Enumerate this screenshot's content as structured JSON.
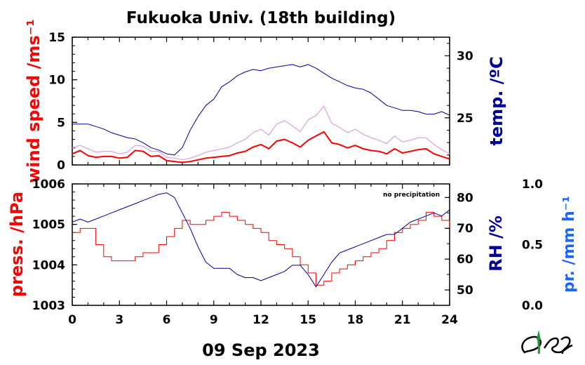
{
  "title": "Fukuoka Univ. (18th building)",
  "date_label": "09 Sep 2023",
  "colors": {
    "wind": "#ff0000",
    "wind_gust": "#d9a0e0",
    "temp": "#000099",
    "press": "#ff0000",
    "rh": "#000099",
    "precip": "#1a66ff",
    "frame": "#000000"
  },
  "chart_data": [
    {
      "type": "line",
      "panel": "top",
      "x_label": "",
      "x_ticks": [
        "0",
        "3",
        "6",
        "9",
        "12",
        "15",
        "18",
        "21",
        "24"
      ],
      "xlim": [
        0,
        24
      ],
      "left_axis": {
        "label": "wind speed /ms⁻¹",
        "ticks": [
          "0",
          "5",
          "10",
          "15"
        ],
        "lim": [
          0,
          15
        ]
      },
      "right_axis": {
        "label": "temp. /ºC",
        "ticks": [
          "25",
          "30"
        ],
        "lim": [
          21.2,
          31.5
        ]
      },
      "series": [
        {
          "name": "wind speed",
          "axis": "left",
          "x": [
            0,
            0.5,
            1,
            1.5,
            2,
            2.5,
            3,
            3.5,
            4,
            4.5,
            5,
            5.5,
            6,
            6.5,
            7,
            7.5,
            8,
            8.5,
            9,
            9.5,
            10,
            10.5,
            11,
            11.5,
            12,
            12.5,
            13,
            13.5,
            14,
            14.5,
            15,
            15.5,
            16,
            16.5,
            17,
            17.5,
            18,
            18.5,
            19,
            19.5,
            20,
            20.5,
            21,
            21.5,
            22,
            22.5,
            23,
            23.5,
            24
          ],
          "values": [
            1.3,
            1.7,
            1.1,
            0.9,
            1.0,
            1.0,
            0.8,
            0.9,
            1.7,
            1.6,
            1.0,
            1.1,
            0.5,
            0.4,
            0.3,
            0.4,
            0.6,
            0.8,
            0.9,
            1.0,
            1.1,
            1.4,
            1.6,
            2.1,
            2.4,
            1.9,
            2.8,
            3.0,
            2.6,
            2.1,
            2.9,
            3.4,
            3.9,
            2.6,
            2.4,
            2.0,
            2.3,
            1.9,
            1.7,
            1.6,
            1.3,
            1.9,
            1.4,
            1.6,
            1.8,
            1.9,
            1.3,
            1.0,
            0.7
          ]
        },
        {
          "name": "wind gust",
          "axis": "left",
          "x": [
            0,
            0.5,
            1,
            1.5,
            2,
            2.5,
            3,
            3.5,
            4,
            4.5,
            5,
            5.5,
            6,
            6.5,
            7,
            7.5,
            8,
            8.5,
            9,
            9.5,
            10,
            10.5,
            11,
            11.5,
            12,
            12.5,
            13,
            13.5,
            14,
            14.5,
            15,
            15.5,
            16,
            16.5,
            17,
            17.5,
            18,
            18.5,
            19,
            19.5,
            20,
            20.5,
            21,
            21.5,
            22,
            22.5,
            23,
            23.5,
            24
          ],
          "values": [
            2.0,
            2.3,
            1.9,
            1.5,
            1.6,
            1.6,
            1.3,
            1.5,
            2.3,
            2.2,
            1.6,
            1.6,
            0.9,
            0.8,
            0.6,
            0.8,
            1.1,
            1.5,
            1.7,
            1.9,
            2.1,
            2.6,
            3.0,
            3.8,
            4.2,
            3.5,
            4.8,
            5.2,
            4.6,
            3.9,
            5.3,
            5.8,
            6.9,
            4.9,
            4.4,
            3.8,
            4.2,
            3.6,
            3.2,
            2.9,
            2.5,
            3.4,
            2.7,
            2.9,
            3.2,
            3.2,
            2.4,
            1.8,
            1.3
          ]
        },
        {
          "name": "temperature",
          "axis": "right",
          "x": [
            0,
            0.5,
            1,
            1.5,
            2,
            2.5,
            3,
            3.5,
            4,
            4.5,
            5,
            5.5,
            6,
            6.5,
            7,
            7.5,
            8,
            8.5,
            9,
            9.5,
            10,
            10.5,
            11,
            11.5,
            12,
            12.5,
            13,
            13.5,
            14,
            14.5,
            15,
            15.5,
            16,
            16.5,
            17,
            17.5,
            18,
            18.5,
            19,
            19.5,
            20,
            20.5,
            21,
            21.5,
            22,
            22.5,
            23,
            23.5,
            24
          ],
          "values": [
            24.5,
            24.5,
            24.5,
            24.3,
            24.1,
            23.8,
            23.6,
            23.4,
            23.3,
            23.0,
            22.6,
            22.4,
            22.1,
            22.0,
            22.6,
            24.0,
            25.1,
            26.0,
            26.5,
            27.5,
            27.9,
            28.4,
            28.7,
            28.9,
            28.8,
            29.0,
            29.1,
            29.2,
            29.3,
            29.1,
            29.3,
            29.0,
            28.6,
            28.2,
            27.9,
            27.6,
            27.4,
            27.3,
            27.0,
            26.5,
            26.0,
            25.8,
            25.6,
            25.6,
            25.5,
            25.3,
            25.3,
            25.5,
            25.2
          ]
        }
      ]
    },
    {
      "type": "line",
      "panel": "bottom",
      "x_label": "",
      "x_ticks": [
        "0",
        "3",
        "6",
        "9",
        "12",
        "15",
        "18",
        "21",
        "24"
      ],
      "xlim": [
        0,
        24
      ],
      "annotation": "no precipitation",
      "left_axis": {
        "label": "press. /hPa",
        "ticks": [
          "1003",
          "1004",
          "1005",
          "1006"
        ],
        "lim": [
          1003,
          1006
        ]
      },
      "right_axis": {
        "label": "RH /%",
        "ticks": [
          "50",
          "60",
          "70",
          "80"
        ],
        "lim": [
          45,
          84.4
        ]
      },
      "far_right_axis": {
        "label": "pr. /mm h⁻¹",
        "ticks": [
          "0.0",
          "0.5",
          "1.0"
        ],
        "lim": [
          0,
          1
        ]
      },
      "series": [
        {
          "name": "pressure",
          "axis": "left",
          "x": [
            0,
            0.5,
            1,
            1.5,
            2,
            2.5,
            3,
            3.5,
            4,
            4.5,
            5,
            5.5,
            6,
            6.5,
            7,
            7.5,
            8,
            8.5,
            9,
            9.5,
            10,
            10.5,
            11,
            11.5,
            12,
            12.5,
            13,
            13.5,
            14,
            14.5,
            15,
            15.5,
            16,
            16.5,
            17,
            17.5,
            18,
            18.5,
            19,
            19.5,
            20,
            20.5,
            21,
            21.5,
            22,
            22.5,
            23,
            23.5,
            24
          ],
          "values": [
            1004.8,
            1004.9,
            1004.9,
            1004.5,
            1004.2,
            1004.1,
            1004.1,
            1004.1,
            1004.2,
            1004.3,
            1004.3,
            1004.5,
            1004.7,
            1004.9,
            1005.1,
            1005.0,
            1005.0,
            1005.1,
            1005.2,
            1005.3,
            1005.2,
            1005.1,
            1005.0,
            1004.9,
            1004.8,
            1004.6,
            1004.5,
            1004.4,
            1004.2,
            1004.0,
            1003.8,
            1003.5,
            1003.6,
            1003.8,
            1003.9,
            1004.0,
            1004.1,
            1004.2,
            1004.3,
            1004.4,
            1004.6,
            1004.8,
            1004.9,
            1005.0,
            1005.1,
            1005.3,
            1005.2,
            1005.1,
            1004.9
          ]
        },
        {
          "name": "relative humidity",
          "axis": "right",
          "x": [
            0,
            0.5,
            1,
            1.5,
            2,
            2.5,
            3,
            3.5,
            4,
            4.5,
            5,
            5.5,
            6,
            6.5,
            7,
            7.5,
            8,
            8.5,
            9,
            9.5,
            10,
            10.5,
            11,
            11.5,
            12,
            12.5,
            13,
            13.5,
            14,
            14.5,
            15,
            15.5,
            16,
            16.5,
            17,
            17.5,
            18,
            18.5,
            19,
            19.5,
            20,
            20.5,
            21,
            21.5,
            22,
            22.5,
            23,
            23.5,
            24
          ],
          "values": [
            72.0,
            73.0,
            72.0,
            73.0,
            74.0,
            75.0,
            76.0,
            77.0,
            78.0,
            79.0,
            80.0,
            81.0,
            81.5,
            80.0,
            75.0,
            70.0,
            64.0,
            59.0,
            57.0,
            57.0,
            57.0,
            55.0,
            54.0,
            54.0,
            53.0,
            54.0,
            55.0,
            56.0,
            58.0,
            58.0,
            55.0,
            51.0,
            55.0,
            59.0,
            62.0,
            63.0,
            64.0,
            65.0,
            66.0,
            67.0,
            68.0,
            68.0,
            70.0,
            72.0,
            73.0,
            74.0,
            75.0,
            74.0,
            76.0
          ]
        }
      ]
    }
  ]
}
